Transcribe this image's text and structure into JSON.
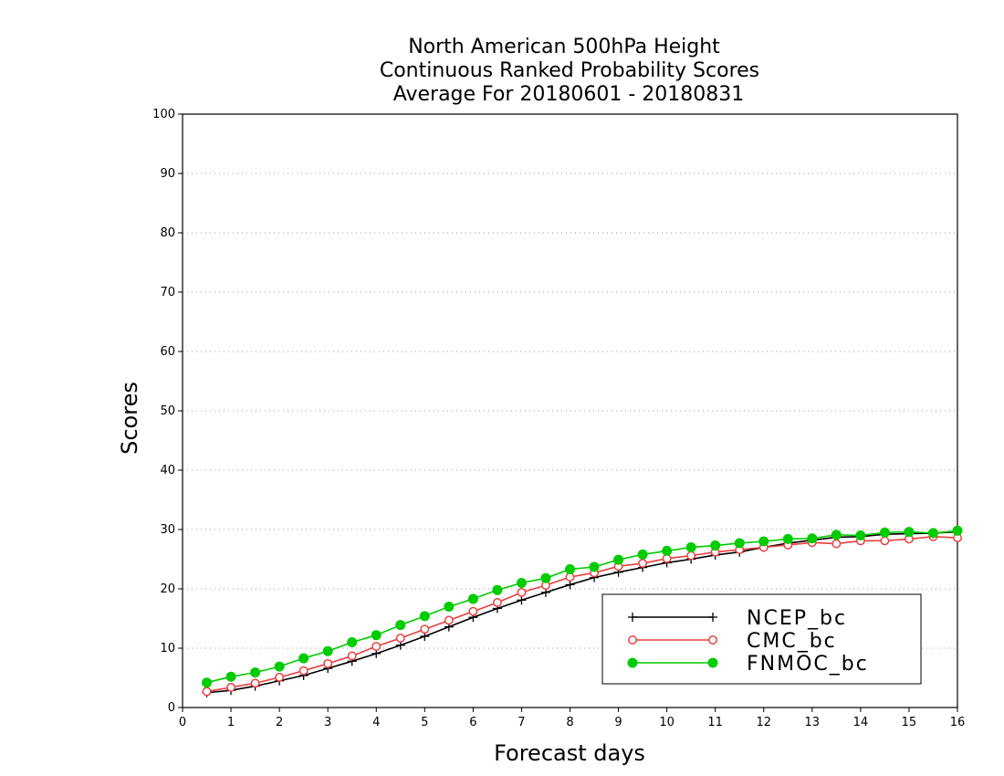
{
  "chart_data": {
    "type": "line",
    "title": "North American 500hPa Height",
    "subtitle_1": "Continuous Ranked Probability Scores",
    "subtitle_2": "Average For 20180601 - 20180831",
    "xlabel": "Forecast days",
    "ylabel": "Scores",
    "xlim": [
      0,
      16
    ],
    "ylim": [
      0,
      100
    ],
    "xticks": [
      "0",
      "1",
      "2",
      "3",
      "4",
      "5",
      "6",
      "7",
      "8",
      "9",
      "10",
      "11",
      "12",
      "13",
      "14",
      "15",
      "16"
    ],
    "yticks": [
      "0",
      "10",
      "20",
      "30",
      "40",
      "50",
      "60",
      "70",
      "80",
      "90",
      "100"
    ],
    "grid": true,
    "legend_position": "bottom-right",
    "x": [
      0.5,
      1,
      1.5,
      2,
      2.5,
      3,
      3.5,
      4,
      4.5,
      5,
      5.5,
      6,
      6.5,
      7,
      7.5,
      8,
      8.5,
      9,
      9.5,
      10,
      10.5,
      11,
      11.5,
      12,
      12.5,
      13,
      13.5,
      14,
      14.5,
      15,
      15.5,
      16
    ],
    "series": [
      {
        "name": "NCEP_bc",
        "color": "#000000",
        "marker": "plus",
        "values": [
          2.5,
          2.9,
          3.6,
          4.5,
          5.4,
          6.6,
          7.8,
          9.1,
          10.5,
          12.0,
          13.6,
          15.2,
          16.7,
          18.1,
          19.4,
          20.7,
          21.9,
          22.8,
          23.6,
          24.4,
          25.0,
          25.7,
          26.2,
          27.0,
          27.7,
          28.2,
          28.7,
          28.8,
          29.2,
          29.3,
          29.4,
          29.6
        ]
      },
      {
        "name": "CMC_bc",
        "color": "#e84040",
        "marker": "open-circle",
        "values": [
          2.7,
          3.4,
          4.1,
          5.1,
          6.2,
          7.4,
          8.7,
          10.3,
          11.7,
          13.2,
          14.7,
          16.2,
          17.7,
          19.4,
          20.6,
          22.0,
          22.7,
          23.8,
          24.3,
          25.1,
          25.6,
          26.2,
          26.6,
          27.0,
          27.4,
          27.8,
          27.6,
          28.1,
          28.1,
          28.4,
          28.8,
          28.6
        ]
      },
      {
        "name": "FNMOC_bc",
        "color": "#00cc00",
        "marker": "filled-circle",
        "values": [
          4.2,
          5.2,
          5.9,
          6.9,
          8.3,
          9.5,
          11.0,
          12.2,
          13.9,
          15.4,
          17.0,
          18.3,
          19.8,
          21.0,
          21.8,
          23.3,
          23.7,
          24.9,
          25.8,
          26.4,
          27.0,
          27.3,
          27.7,
          28.0,
          28.4,
          28.5,
          29.1,
          29.0,
          29.5,
          29.6,
          29.4,
          29.8
        ]
      }
    ]
  }
}
